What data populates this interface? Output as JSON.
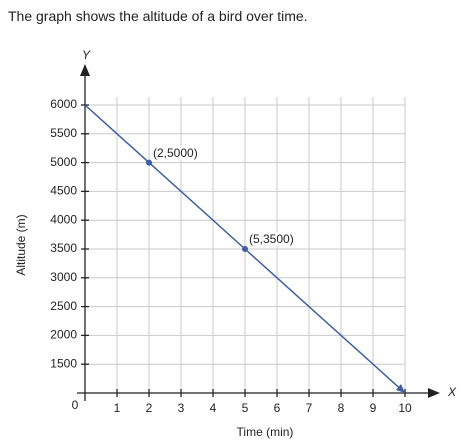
{
  "header": {
    "text": "The graph shows the altitude of a bird over time."
  },
  "chart_data": {
    "type": "line",
    "x_label": "Time (min)",
    "y_label": "Altitude (m)",
    "x_axis_letter": "X",
    "y_axis_letter": "Y",
    "x": [
      0,
      2,
      5,
      10
    ],
    "series": [
      {
        "color": "#3a5ea8",
        "values": [
          6000,
          5000,
          3500,
          0
        ],
        "value_labels": [
          null,
          "(2,5000)",
          "(5,3500)",
          null
        ]
      }
    ],
    "xlim": [
      0,
      10
    ],
    "xticks": [
      1,
      2,
      3,
      4,
      5,
      6,
      7,
      8,
      9,
      10
    ],
    "ylim": [
      0,
      6000
    ],
    "yticks": [
      0,
      1500,
      2000,
      2500,
      3000,
      3500,
      4000,
      4500,
      5000,
      5500,
      6000
    ],
    "axis_break": [
      0,
      1500
    ],
    "grid": true
  }
}
